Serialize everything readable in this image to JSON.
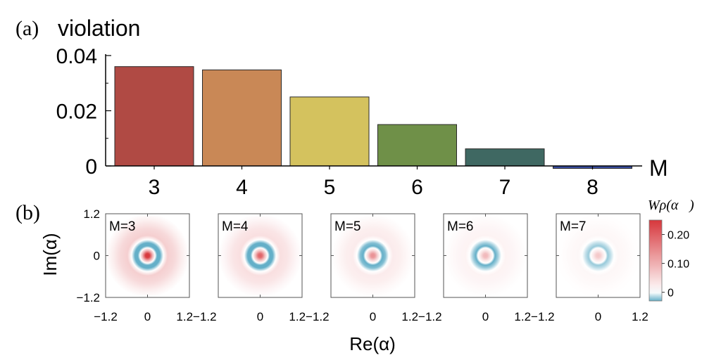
{
  "chart_data": [
    {
      "type": "bar",
      "panel_label": "(a)",
      "ylabel": "violation",
      "xlabel": "M",
      "categories": [
        "3",
        "4",
        "5",
        "6",
        "7",
        "8"
      ],
      "values": [
        0.036,
        0.0348,
        0.025,
        0.015,
        0.0062,
        -0.0009
      ],
      "colors": [
        "#b04a44",
        "#c98856",
        "#d4c25e",
        "#6f9048",
        "#3f6862",
        "#3a4ea0"
      ],
      "yticks": [
        "0",
        "0.02",
        "0.04"
      ],
      "ylim": [
        -0.001,
        0.04
      ]
    },
    {
      "type": "heatmap",
      "panel_label": "(b)",
      "xlabel": "Re(α)",
      "ylabel": "Im(α)",
      "xlim": [
        -1.2,
        1.2
      ],
      "ylim": [
        -1.2,
        1.2
      ],
      "tick_labels": [
        "−1.2",
        "0",
        "1.2"
      ],
      "colorbar_title": "Wρ(α⃗)",
      "colorbar_ticks": [
        "0.20",
        "0.10",
        "0"
      ],
      "colorbar_range": [
        -0.03,
        0.25
      ],
      "panels": [
        {
          "label": "M=3",
          "center_value": 0.27,
          "ring_value": -0.07,
          "outer_value": 0.06
        },
        {
          "label": "M=4",
          "center_value": 0.2,
          "ring_value": -0.06,
          "outer_value": 0.04
        },
        {
          "label": "M=5",
          "center_value": 0.14,
          "ring_value": -0.04,
          "outer_value": 0.025
        },
        {
          "label": "M=6",
          "center_value": 0.09,
          "ring_value": -0.03,
          "outer_value": 0.015
        },
        {
          "label": "M=7",
          "center_value": 0.07,
          "ring_value": -0.02,
          "outer_value": 0.01
        }
      ]
    }
  ]
}
